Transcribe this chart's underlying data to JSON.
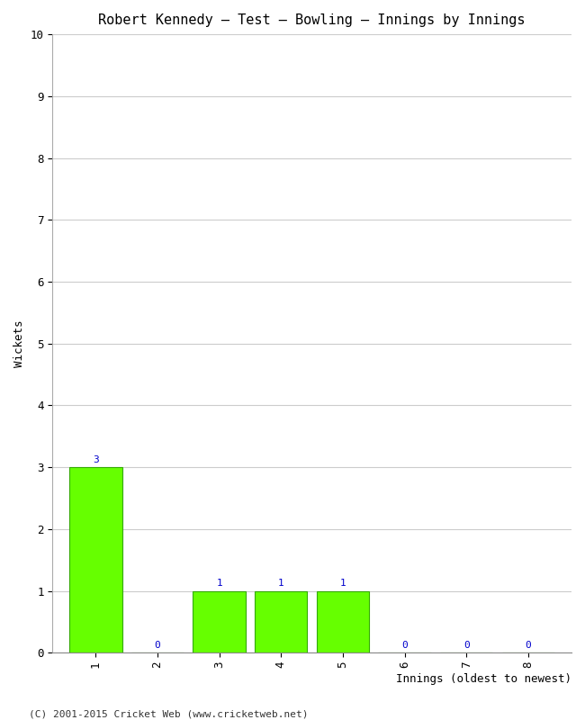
{
  "title": "Robert Kennedy – Test – Bowling – Innings by Innings",
  "xlabel": "Innings (oldest to newest)",
  "ylabel": "Wickets",
  "categories": [
    1,
    2,
    3,
    4,
    5,
    6,
    7,
    8
  ],
  "values": [
    3,
    0,
    1,
    1,
    1,
    0,
    0,
    0
  ],
  "bar_color": "#66ff00",
  "bar_edge_color": "#33aa00",
  "label_color": "#0000cc",
  "ylim": [
    0,
    10
  ],
  "yticks": [
    0,
    1,
    2,
    3,
    4,
    5,
    6,
    7,
    8,
    9,
    10
  ],
  "background_color": "#ffffff",
  "grid_color": "#cccccc",
  "footer": "(C) 2001-2015 Cricket Web (www.cricketweb.net)",
  "title_fontsize": 11,
  "axis_label_fontsize": 9,
  "tick_fontsize": 9,
  "label_fontsize": 8,
  "footer_fontsize": 8
}
